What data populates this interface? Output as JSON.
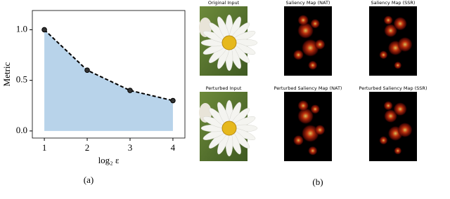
{
  "chart_data": {
    "type": "line",
    "x": [
      1,
      2,
      3,
      4
    ],
    "series": [
      {
        "values": [
          1.0,
          0.6,
          0.4,
          0.3
        ],
        "color": "#000000",
        "fill": "#b8d3ea"
      }
    ],
    "xlim": [
      0.72,
      4.28
    ],
    "ylim": [
      -0.07,
      1.19
    ],
    "xticks": [
      1,
      2,
      3,
      4
    ],
    "yticks": [
      {
        "value": 0,
        "label": "0.0"
      },
      {
        "value": 0.5,
        "label": "0.5"
      },
      {
        "value": 1,
        "label": "1.0"
      }
    ],
    "xlabel": "log₂ ε",
    "ylabel": "Metric",
    "caption": "(a)"
  },
  "panel_b": {
    "caption": "(b)",
    "images": [
      {
        "label": "Original Input",
        "kind": "flower"
      },
      {
        "label": "Saliency Map (NAT)",
        "kind": "saliency"
      },
      {
        "label": "Saliency Map (SSR)",
        "kind": "saliency"
      },
      {
        "label": "Perturbed Input",
        "kind": "flower"
      },
      {
        "label": "Perturbed Saliency Map (NAT)",
        "kind": "saliency"
      },
      {
        "label": "Perturbed Saliency Map (SSR)",
        "kind": "saliency"
      }
    ]
  }
}
